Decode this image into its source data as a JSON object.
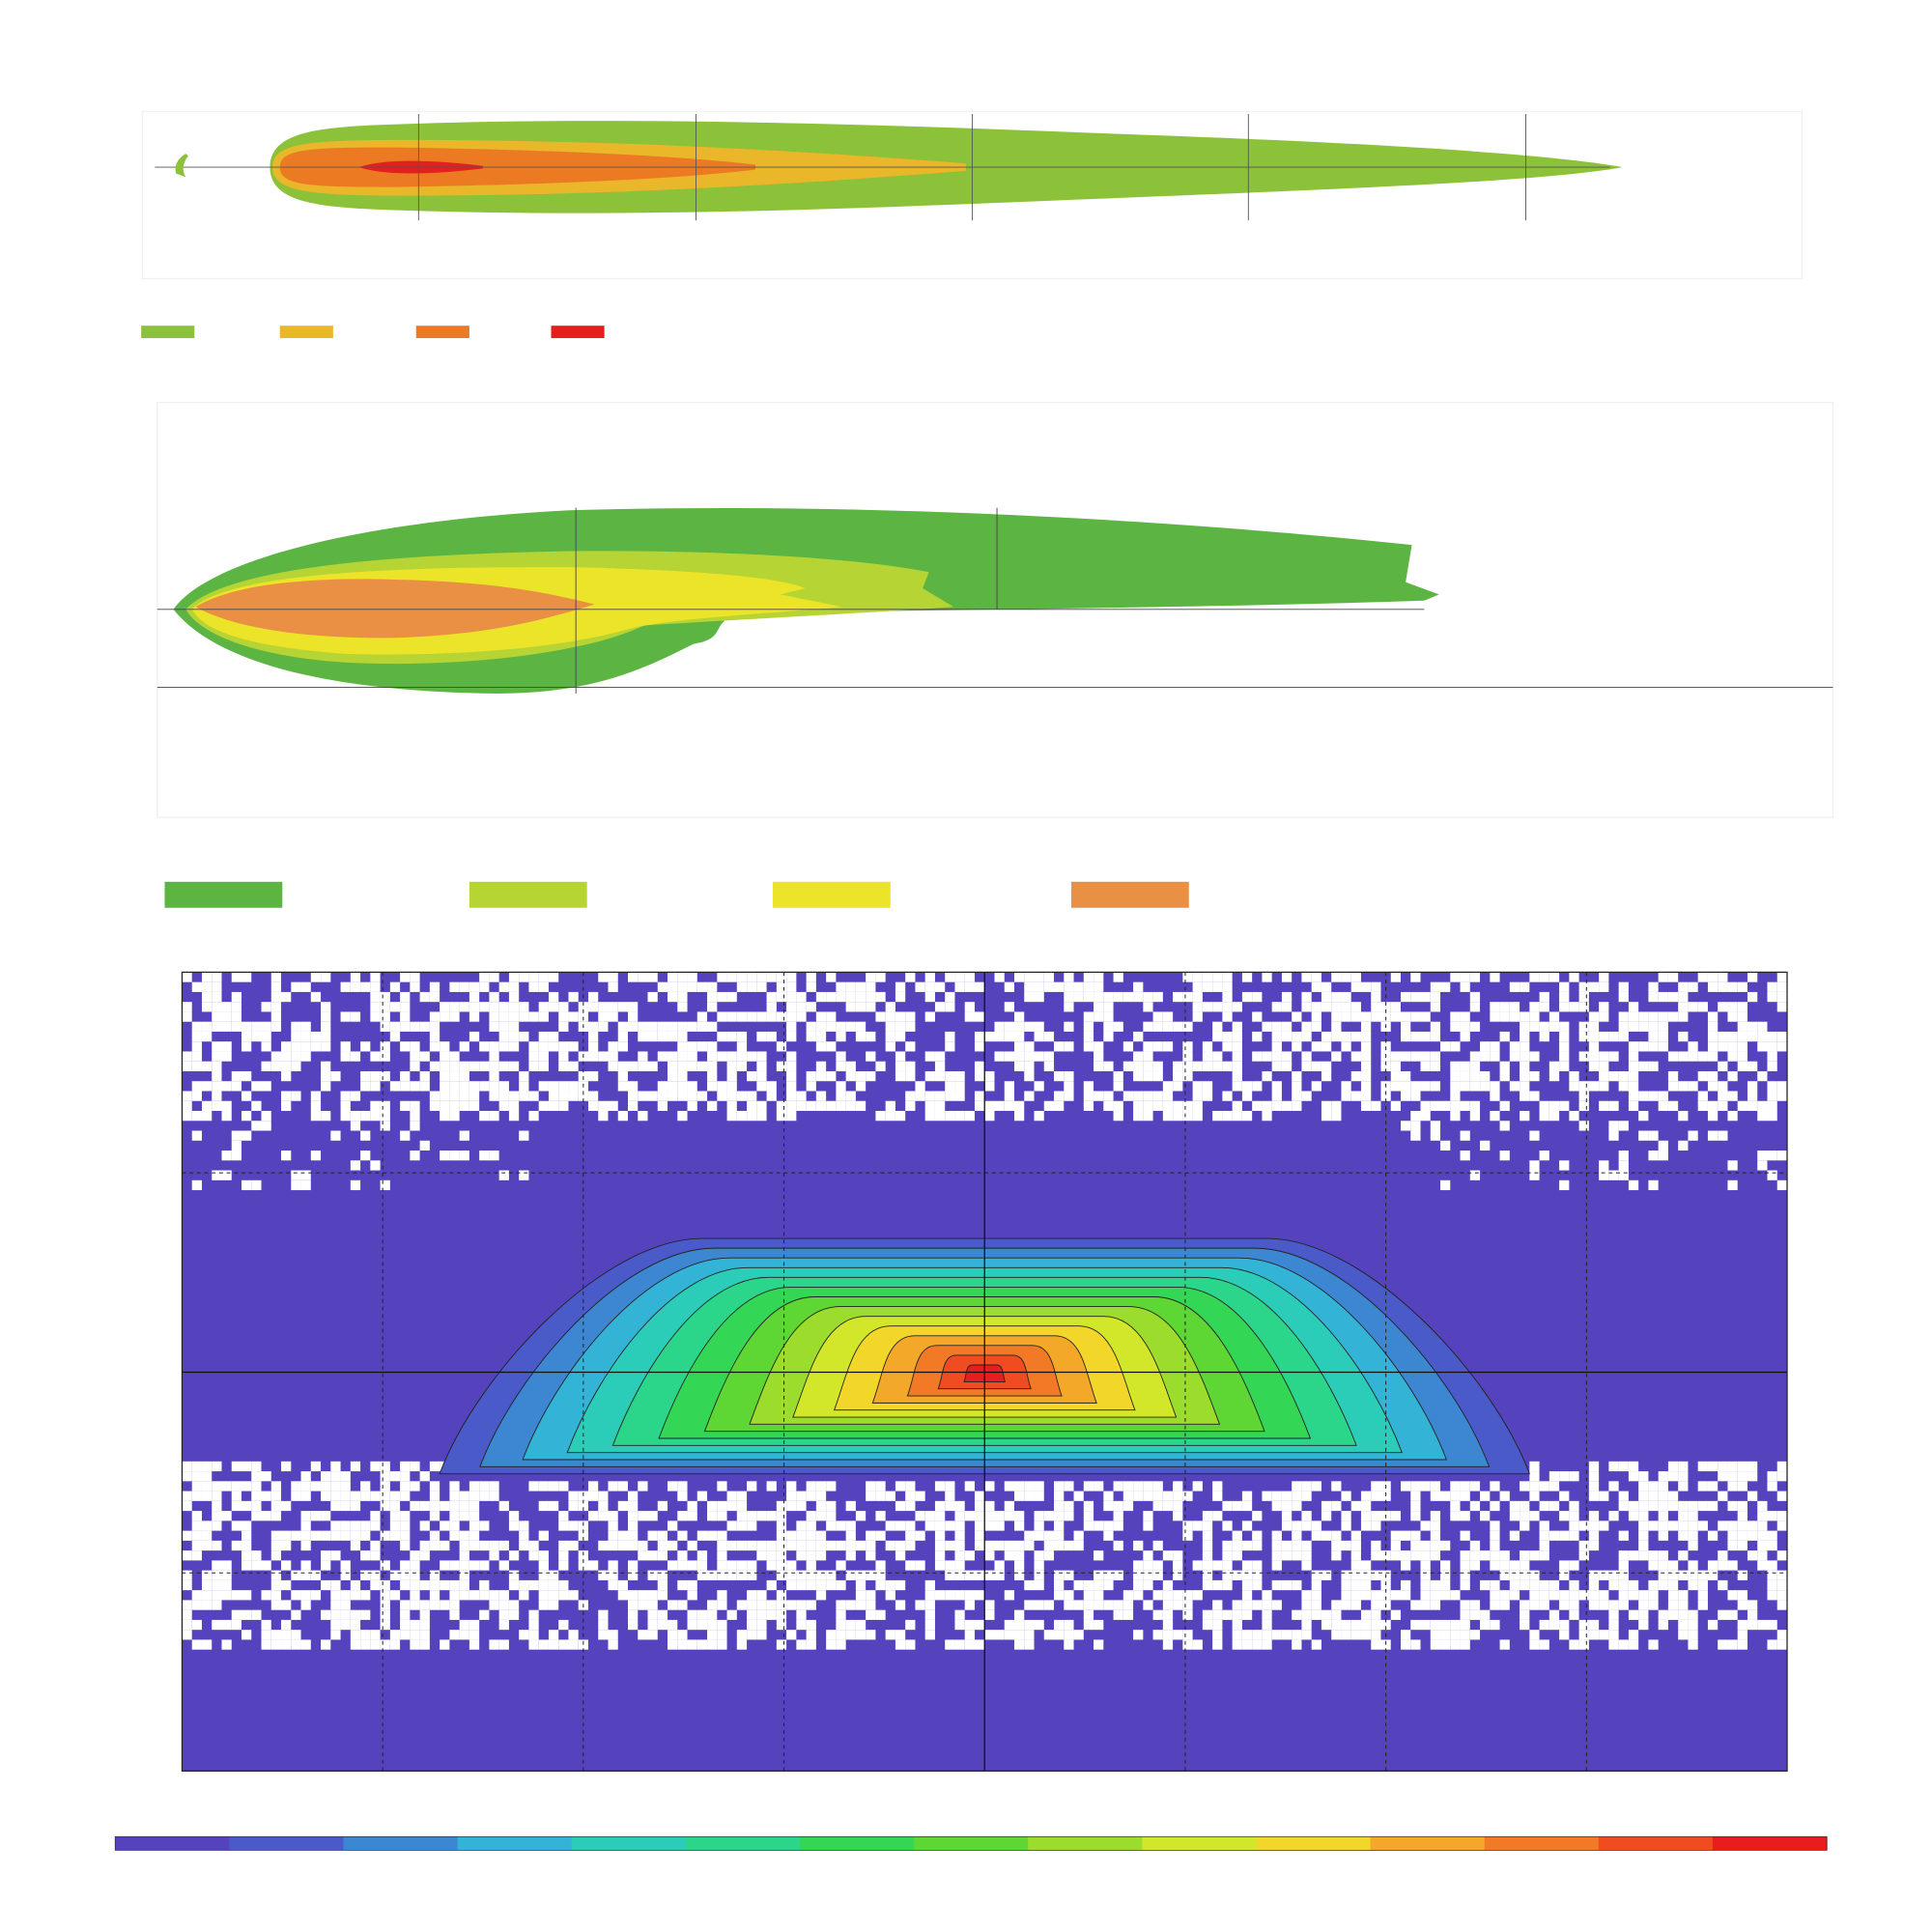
{
  "plots": [
    {
      "legend": [
        {
          "color": "#8cc13a"
        },
        {
          "color": "#eab62a"
        },
        {
          "color": "#ec7a22"
        },
        {
          "color": "#e41f1f"
        }
      ]
    },
    {
      "legend": [
        {
          "color": "#5cb542"
        },
        {
          "color": "#b7d435"
        },
        {
          "color": "#ece428"
        },
        {
          "color": "#e99044"
        }
      ]
    }
  ],
  "colorbar": {
    "colors": [
      "#5443bd",
      "#4a5ac8",
      "#3d86d2",
      "#33b3d6",
      "#2ccdb8",
      "#2bd68a",
      "#34d656",
      "#5ed633",
      "#9cdc2c",
      "#d2e62a",
      "#f2d62a",
      "#f4a829",
      "#f27a26",
      "#ef4c22",
      "#e81e1e"
    ]
  }
}
